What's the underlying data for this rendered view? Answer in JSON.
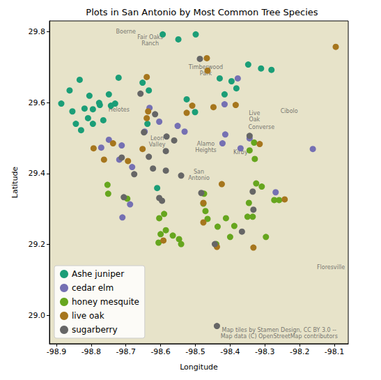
{
  "chart_data": {
    "type": "scatter",
    "title": "Plots in San Antonio by Most Common Tree Species",
    "x_label": "Longitude",
    "y_label": "Latitude",
    "xlim": [
      -98.92,
      -98.06
    ],
    "ylim": [
      28.92,
      29.83
    ],
    "xticks": [
      -98.9,
      -98.8,
      -98.7,
      -98.6,
      -98.5,
      -98.4,
      -98.3,
      -98.2,
      -98.1
    ],
    "yticks": [
      {
        "value": 29.0,
        "label": "29.0"
      },
      29.2,
      29.4,
      29.6,
      29.8
    ],
    "grid": false,
    "legend": "lower left",
    "marker": "circle",
    "series": [
      {
        "name": "Ashe juniper",
        "color": "#1b9e77",
        "x": [
          -98.594,
          -98.549,
          -98.499,
          -98.833,
          -98.862,
          -98.886,
          -98.805,
          -98.777,
          -98.749,
          -98.743,
          -98.731,
          -98.854,
          -98.819,
          -98.795,
          -98.775,
          -98.765,
          -98.844,
          -98.809,
          -98.795,
          -98.829,
          -98.721,
          -98.652,
          -98.634,
          -98.525,
          -98.501,
          -98.43,
          -98.396,
          -98.416,
          -98.348,
          -98.311,
          -98.281,
          -98.382,
          -98.61,
          -98.638
        ],
        "y": [
          29.792,
          29.778,
          29.792,
          29.664,
          29.634,
          29.597,
          29.619,
          29.599,
          29.623,
          29.591,
          29.597,
          29.575,
          29.583,
          29.581,
          29.593,
          29.55,
          29.54,
          29.556,
          29.54,
          29.522,
          29.67,
          29.656,
          29.634,
          29.609,
          29.573,
          29.668,
          29.66,
          29.623,
          29.707,
          29.696,
          29.692,
          29.64,
          29.359,
          29.54
        ]
      },
      {
        "name": "cedar elm",
        "color": "#7570b3",
        "x": [
          -98.378,
          -98.416,
          -98.632,
          -98.604,
          -98.749,
          -98.771,
          -98.682,
          -98.712,
          -98.646,
          -98.531,
          -98.414,
          -98.422,
          -98.344,
          -98.37,
          -98.162,
          -98.269,
          -98.688,
          -98.71,
          -98.719,
          -98.551
        ],
        "y": [
          29.668,
          29.595,
          29.585,
          29.546,
          29.495,
          29.473,
          29.418,
          29.479,
          29.518,
          29.518,
          29.51,
          29.485,
          29.499,
          29.471,
          29.469,
          29.347,
          29.313,
          29.276,
          29.439,
          29.534
        ]
      },
      {
        "name": "honey mesquite",
        "color": "#66a61e",
        "x": [
          -98.753,
          -98.751,
          -98.696,
          -98.604,
          -98.585,
          -98.6,
          -98.565,
          -98.547,
          -98.541,
          -98.606,
          -98.475,
          -98.477,
          -98.471,
          -98.465,
          -98.436,
          -98.412,
          -98.388,
          -98.346,
          -98.35,
          -98.335,
          -98.325,
          -98.309,
          -98.273,
          -98.259,
          -98.297,
          -98.44,
          -98.344,
          -98.331,
          -98.329,
          -98.59,
          -98.4
        ],
        "y": [
          29.368,
          29.343,
          29.329,
          29.274,
          29.24,
          29.229,
          29.225,
          29.215,
          29.201,
          29.205,
          29.343,
          29.315,
          29.294,
          29.272,
          29.25,
          29.274,
          29.252,
          29.317,
          29.278,
          29.278,
          29.372,
          29.363,
          29.325,
          29.325,
          29.221,
          29.201,
          29.465,
          29.487,
          29.441,
          29.286,
          29.221
        ]
      },
      {
        "name": "live oak",
        "color": "#a6761d",
        "x": [
          -98.467,
          -98.465,
          -98.64,
          -98.636,
          -98.64,
          -98.525,
          -98.509,
          -98.448,
          -98.384,
          -98.737,
          -98.793,
          -98.763,
          -98.652,
          -98.694,
          -98.315,
          -98.477,
          -98.424,
          -98.592,
          -98.333,
          -98.243,
          -98.096,
          -98.477,
          -98.438
        ],
        "y": [
          29.725,
          29.69,
          29.672,
          29.575,
          29.556,
          29.571,
          29.591,
          29.587,
          29.593,
          29.485,
          29.471,
          29.439,
          29.469,
          29.435,
          29.483,
          29.317,
          29.37,
          29.211,
          29.191,
          29.327,
          29.757,
          29.262,
          29.193
        ]
      },
      {
        "name": "sugarberry",
        "color": "#666666",
        "x": [
          -98.487,
          -98.658,
          -98.648,
          -98.616,
          -98.585,
          -98.561,
          -98.622,
          -98.585,
          -98.541,
          -98.634,
          -98.712,
          -98.706,
          -98.604,
          -98.596,
          -98.483,
          -98.344,
          -98.335,
          -98.333,
          -98.366,
          -98.444,
          -98.676,
          -98.583,
          -98.438
        ],
        "y": [
          29.723,
          29.625,
          29.516,
          29.567,
          29.463,
          29.493,
          29.414,
          29.408,
          29.394,
          29.447,
          29.445,
          29.333,
          29.331,
          29.323,
          29.345,
          29.506,
          29.349,
          29.298,
          29.236,
          29.201,
          29.398,
          29.504,
          28.97
        ]
      }
    ],
    "annotations": [
      {
        "text": "Boerne",
        "x": -98.7,
        "y": 29.8
      },
      {
        "text": "Fair Oaks\nRanch",
        "x": -98.63,
        "y": 29.775
      },
      {
        "text": "Timberwood\nPark",
        "x": -98.47,
        "y": 29.69
      },
      {
        "text": "Helotes",
        "x": -98.72,
        "y": 29.58
      },
      {
        "text": "Live\nOak",
        "x": -98.33,
        "y": 29.56
      },
      {
        "text": "Cibolo",
        "x": -98.23,
        "y": 29.575
      },
      {
        "text": "Converse",
        "x": -98.31,
        "y": 29.53
      },
      {
        "text": "Leon\nValley",
        "x": -98.61,
        "y": 29.49
      },
      {
        "text": "Alamo\nHeights",
        "x": -98.47,
        "y": 29.475
      },
      {
        "text": "Kirby",
        "x": -98.37,
        "y": 29.46
      },
      {
        "text": "San\nAntonio",
        "x": -98.49,
        "y": 29.395
      },
      {
        "text": "Floresville",
        "x": -98.11,
        "y": 29.135
      },
      {
        "text": "Map tiles by Stamen Design, CC BY 3.0 --\nMap data (C) OpenStreetMap contributors",
        "x": -98.259,
        "y": 28.949
      }
    ]
  }
}
